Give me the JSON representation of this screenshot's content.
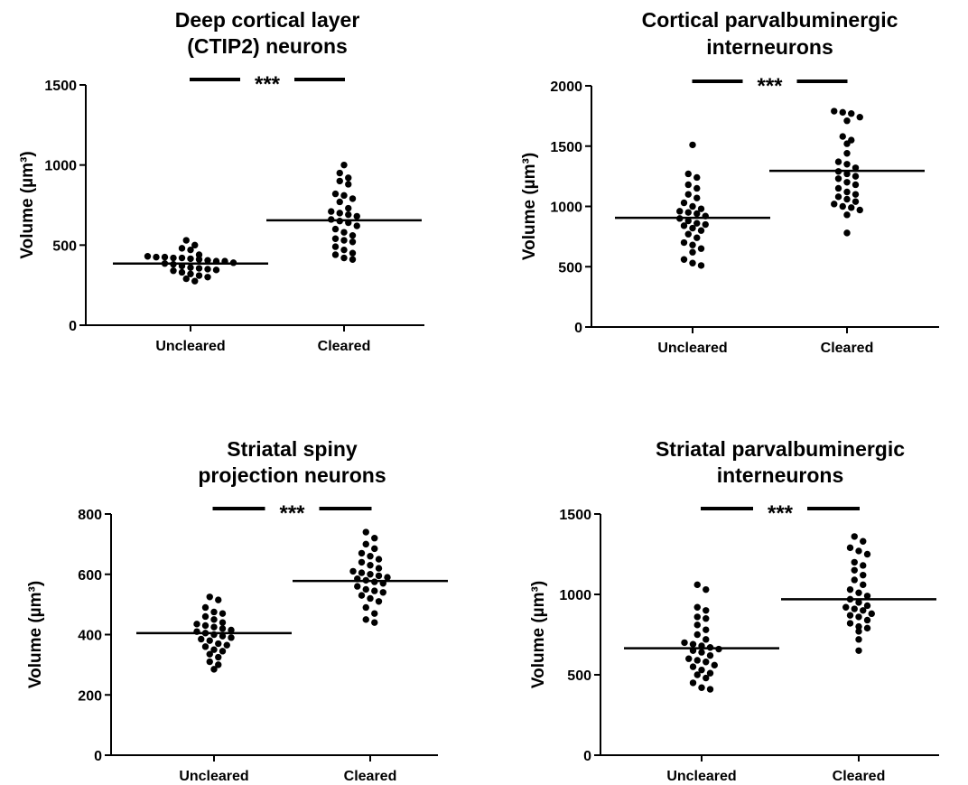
{
  "chart_data": [
    {
      "type": "scatter",
      "title_lines": [
        "Deep cortical layer",
        "(CTIP2) neurons"
      ],
      "ylabel": "Volume (µm³)",
      "ylim": [
        0,
        1500
      ],
      "yticks": [
        0,
        500,
        1000,
        1500
      ],
      "categories": [
        "Uncleared",
        "Cleared"
      ],
      "significance": "***",
      "series": [
        {
          "category": "Uncleared",
          "mean": 385,
          "values": [
            530,
            500,
            480,
            470,
            440,
            430,
            425,
            425,
            420,
            420,
            415,
            410,
            405,
            400,
            400,
            390,
            385,
            380,
            370,
            360,
            355,
            350,
            345,
            340,
            330,
            320,
            310,
            300,
            290,
            275
          ]
        },
        {
          "category": "Cleared",
          "mean": 655,
          "values": [
            1000,
            950,
            920,
            900,
            880,
            820,
            810,
            790,
            770,
            730,
            710,
            700,
            690,
            680,
            660,
            650,
            640,
            620,
            600,
            580,
            560,
            540,
            530,
            520,
            490,
            470,
            450,
            440,
            420,
            410
          ]
        }
      ]
    },
    {
      "type": "scatter",
      "title_lines": [
        "Cortical parvalbuminergic",
        "interneurons"
      ],
      "ylabel": "Volume (µm³)",
      "ylim": [
        0,
        2000
      ],
      "yticks": [
        0,
        500,
        1000,
        1500,
        2000
      ],
      "categories": [
        "Uncleared",
        "Cleared"
      ],
      "significance": "***",
      "series": [
        {
          "category": "Uncleared",
          "mean": 905,
          "values": [
            1510,
            1270,
            1240,
            1180,
            1150,
            1100,
            1070,
            1030,
            1000,
            980,
            960,
            950,
            940,
            920,
            900,
            880,
            860,
            850,
            840,
            820,
            800,
            770,
            740,
            700,
            680,
            650,
            620,
            560,
            530,
            510
          ]
        },
        {
          "category": "Cleared",
          "mean": 1295,
          "values": [
            1790,
            1780,
            1770,
            1740,
            1710,
            1580,
            1550,
            1520,
            1440,
            1370,
            1350,
            1320,
            1290,
            1270,
            1250,
            1230,
            1200,
            1180,
            1150,
            1120,
            1100,
            1080,
            1060,
            1040,
            1020,
            1000,
            990,
            970,
            930,
            780
          ]
        }
      ]
    },
    {
      "type": "scatter",
      "title_lines": [
        "Striatal spiny",
        "projection neurons"
      ],
      "ylabel": "Volume (µm³)",
      "ylim": [
        0,
        800
      ],
      "yticks": [
        0,
        200,
        400,
        600,
        800
      ],
      "categories": [
        "Uncleared",
        "Cleared"
      ],
      "significance": "***",
      "series": [
        {
          "category": "Uncleared",
          "mean": 405,
          "values": [
            525,
            515,
            490,
            475,
            470,
            460,
            450,
            440,
            435,
            430,
            425,
            420,
            415,
            410,
            405,
            400,
            395,
            390,
            385,
            380,
            370,
            365,
            360,
            350,
            345,
            335,
            325,
            310,
            300,
            285
          ]
        },
        {
          "category": "Cleared",
          "mean": 578,
          "values": [
            740,
            720,
            700,
            685,
            670,
            660,
            650,
            640,
            630,
            620,
            610,
            605,
            600,
            595,
            590,
            585,
            580,
            575,
            570,
            560,
            550,
            545,
            540,
            530,
            520,
            510,
            490,
            470,
            450,
            440
          ]
        }
      ]
    },
    {
      "type": "scatter",
      "title_lines": [
        "Striatal parvalbuminergic",
        "interneurons"
      ],
      "ylabel": "Volume (µm³)",
      "ylim": [
        0,
        1500
      ],
      "yticks": [
        0,
        500,
        1000,
        1500
      ],
      "categories": [
        "Uncleared",
        "Cleared"
      ],
      "significance": "***",
      "series": [
        {
          "category": "Uncleared",
          "mean": 665,
          "values": [
            1060,
            1030,
            920,
            900,
            860,
            850,
            810,
            780,
            750,
            720,
            700,
            690,
            680,
            670,
            660,
            650,
            640,
            620,
            600,
            590,
            580,
            560,
            550,
            530,
            510,
            500,
            480,
            450,
            420,
            410
          ]
        },
        {
          "category": "Cleared",
          "mean": 970,
          "values": [
            1360,
            1330,
            1290,
            1270,
            1250,
            1200,
            1180,
            1150,
            1120,
            1090,
            1060,
            1030,
            1010,
            990,
            970,
            950,
            930,
            920,
            910,
            900,
            880,
            870,
            860,
            840,
            820,
            800,
            790,
            770,
            720,
            650
          ]
        }
      ]
    }
  ]
}
